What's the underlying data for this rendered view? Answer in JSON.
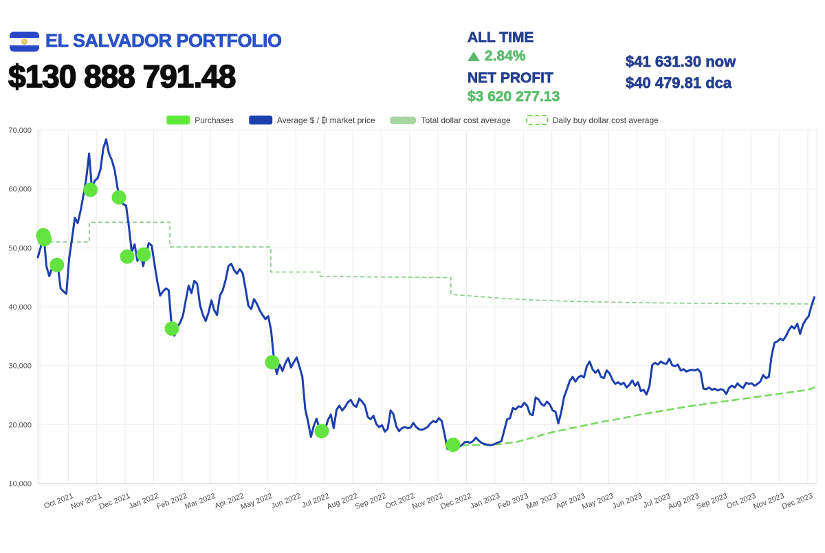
{
  "header": {
    "title": "EL SALVADOR PORTFOLIO",
    "flag_icon": "el-salvador-flag",
    "total_value": "$130 888 791.48",
    "all_time_label": "ALL TIME",
    "all_time_change": "2.84%",
    "net_profit_label": "NET PROFIT",
    "net_profit_value": "$3 620 277.13",
    "price_now": "$41 631.30 now",
    "price_dca": "$40 479.81 dca",
    "colors": {
      "title_blue": "#2a52c8",
      "navy": "#25408f",
      "green": "#5cbd6b",
      "black": "#0c0c0c"
    }
  },
  "legend": [
    {
      "label": "Purchases",
      "swatch_color": "#5fe93c",
      "swatch_style": "solid"
    },
    {
      "label": "Average $ / ₿ market price",
      "swatch_color": "#1c3fae",
      "swatch_style": "solid"
    },
    {
      "label": "Total dollar cost average",
      "swatch_color": "#a7d6a3",
      "swatch_style": "thick-dashed"
    },
    {
      "label": "Daily buy dollar cost average",
      "swatch_color": "#79d95f",
      "swatch_style": "dashed-outline"
    }
  ],
  "chart_data": {
    "type": "line",
    "title": "",
    "xlabel": "",
    "ylabel": "",
    "x_unit": "months since Sep 1 2021 (t=1 equals Oct 1 2021)",
    "ylim": [
      10000,
      70000
    ],
    "grid": true,
    "legend_position": "top-center",
    "x_tick_labels": [
      "Oct 2021",
      "Nov 2021",
      "Dec 2021",
      "Jan 2022",
      "Feb 2022",
      "Mar 2022",
      "Apr 2022",
      "May 2022",
      "Jun 2022",
      "Jul 2022",
      "Aug 2022",
      "Sep 2022",
      "Oct 2022",
      "Nov 2022",
      "Dec 2022",
      "Jan 2023",
      "Feb 2023",
      "Mar 2023",
      "Apr 2023",
      "May 2023",
      "Jun 2023",
      "Jul 2023",
      "Aug 2023",
      "Sep 2023",
      "Oct 2023",
      "Nov 2023",
      "Dec 2023"
    ],
    "y_tick_labels": [
      "10,000",
      "20,000",
      "30,000",
      "40,000",
      "50,000",
      "60,000",
      "70,000"
    ],
    "series": [
      {
        "name": "Total dollar cost average",
        "key": "total-dca",
        "kind": "line",
        "color": "#92cf92",
        "width": 1.8,
        "dash": "5 5",
        "points": [
          [
            0.1,
            51000
          ],
          [
            1.74,
            51000
          ],
          [
            1.74,
            54350
          ],
          [
            4.57,
            54350
          ],
          [
            4.57,
            50150
          ],
          [
            8.12,
            50150
          ],
          [
            8.12,
            45900
          ],
          [
            9.86,
            45900
          ],
          [
            9.86,
            45150
          ],
          [
            14.45,
            44950
          ],
          [
            14.45,
            42100
          ],
          [
            15.5,
            41700
          ],
          [
            16.5,
            41350
          ],
          [
            17.5,
            41120
          ],
          [
            18.5,
            40950
          ],
          [
            19.5,
            40830
          ],
          [
            20.5,
            40740
          ],
          [
            21.5,
            40670
          ],
          [
            22.5,
            40620
          ],
          [
            23.5,
            40570
          ],
          [
            24.5,
            40540
          ],
          [
            25.5,
            40510
          ],
          [
            26.5,
            40490
          ],
          [
            27.23,
            40480
          ]
        ]
      },
      {
        "name": "Daily buy dollar cost average",
        "key": "daily-buy-dca",
        "kind": "line",
        "color": "#79d95f",
        "width": 2.6,
        "dash": "9 7",
        "points": [
          [
            14.45,
            16600
          ],
          [
            15.0,
            16520
          ],
          [
            15.6,
            16560
          ],
          [
            16.2,
            16700
          ],
          [
            16.8,
            17100
          ],
          [
            17.4,
            17900
          ],
          [
            18.0,
            18700
          ],
          [
            18.6,
            19300
          ],
          [
            19.2,
            19900
          ],
          [
            19.8,
            20500
          ],
          [
            20.4,
            21000
          ],
          [
            21.0,
            21600
          ],
          [
            21.6,
            22100
          ],
          [
            22.2,
            22600
          ],
          [
            22.8,
            23100
          ],
          [
            23.4,
            23500
          ],
          [
            24.0,
            23900
          ],
          [
            24.6,
            24300
          ],
          [
            25.2,
            24700
          ],
          [
            25.8,
            25100
          ],
          [
            26.4,
            25500
          ],
          [
            27.0,
            25900
          ],
          [
            27.23,
            26300
          ]
        ]
      },
      {
        "name": "Average $ / ₿ market price",
        "key": "market-price",
        "kind": "line",
        "color": "#1c3fae",
        "width": 3,
        "dash": "",
        "sampled": {
          "t0": -0.07,
          "dt": 0.1,
          "values": [
            48400,
            50100,
            52500,
            46900,
            45200,
            46600,
            47400,
            47000,
            43100,
            42600,
            42200,
            48200,
            51500,
            55100,
            54200,
            56300,
            58900,
            61700,
            66000,
            60000,
            61400,
            61800,
            63300,
            66900,
            68400,
            66000,
            64900,
            63200,
            60200,
            58300,
            57400,
            57200,
            53600,
            49300,
            50600,
            47800,
            49400,
            46900,
            48900,
            50800,
            50400,
            47300,
            44200,
            41900,
            42600,
            43100,
            42800,
            36900,
            35100,
            36500,
            37300,
            38500,
            41100,
            43600,
            42300,
            44400,
            43900,
            40300,
            38600,
            37600,
            39000,
            41100,
            39400,
            38600,
            41900,
            42800,
            44500,
            46900,
            47300,
            46200,
            45600,
            46400,
            45700,
            43100,
            40200,
            39600,
            41300,
            40500,
            39400,
            38600,
            37900,
            38400,
            36000,
            31100,
            28600,
            30200,
            29100,
            30400,
            31300,
            29700,
            30600,
            31400,
            29800,
            28100,
            22600,
            20500,
            17900,
            19800,
            21000,
            19300,
            18800,
            19200,
            20800,
            21700,
            19400,
            22500,
            23200,
            22400,
            23000,
            23800,
            24200,
            23300,
            23000,
            24400,
            23900,
            23200,
            21300,
            20900,
            21500,
            20100,
            19600,
            19900,
            18800,
            19300,
            22400,
            21800,
            19700,
            18900,
            19400,
            19600,
            19400,
            19500,
            20300,
            19600,
            19200,
            19100,
            19300,
            19600,
            20200,
            20600,
            20400,
            21100,
            20600,
            18300,
            15900,
            16600,
            16900,
            16500,
            16200,
            16500,
            17000,
            17100,
            16900,
            17200,
            17800,
            17300,
            16900,
            16700,
            16600,
            16500,
            16600,
            16800,
            17000,
            17200,
            19100,
            20900,
            21100,
            22800,
            22600,
            23100,
            23000,
            23700,
            23200,
            21800,
            21600,
            24600,
            24300,
            23500,
            23200,
            23900,
            23400,
            22400,
            22200,
            20200,
            22100,
            24700,
            26000,
            27400,
            28100,
            27300,
            28000,
            28300,
            28000,
            29900,
            30700,
            29400,
            28800,
            29300,
            28100,
            27900,
            29200,
            28700,
            27600,
            26900,
            27200,
            26800,
            27100,
            26300,
            26800,
            27500,
            26600,
            27200,
            25700,
            25900,
            25100,
            26500,
            30100,
            30500,
            30200,
            30700,
            30400,
            30300,
            31200,
            30100,
            29900,
            30200,
            29200,
            29400,
            29000,
            29200,
            29300,
            29200,
            29400,
            28900,
            26100,
            26000,
            26300,
            25900,
            26100,
            25800,
            26000,
            25900,
            25200,
            26200,
            26600,
            26300,
            27000,
            26500,
            26200,
            27100,
            26900,
            27000,
            26600,
            26900,
            27300,
            28400,
            27900,
            28100,
            31800,
            33900,
            34100,
            34600,
            34300,
            35000,
            36000,
            36700,
            36300,
            37100,
            35400,
            37000,
            37800,
            38400,
            40200,
            41631
          ]
        }
      },
      {
        "name": "Purchases",
        "key": "purchases",
        "kind": "scatter",
        "color": "#63e33f",
        "radius": 10.5,
        "points": [
          [
            0.12,
            52140
          ],
          [
            0.16,
            51480
          ],
          [
            0.6,
            47080
          ],
          [
            1.78,
            59850
          ],
          [
            2.78,
            58560
          ],
          [
            3.07,
            48520
          ],
          [
            3.65,
            48870
          ],
          [
            4.64,
            36300
          ],
          [
            8.17,
            30580
          ],
          [
            9.91,
            18900
          ],
          [
            14.53,
            16570
          ]
        ]
      }
    ]
  }
}
